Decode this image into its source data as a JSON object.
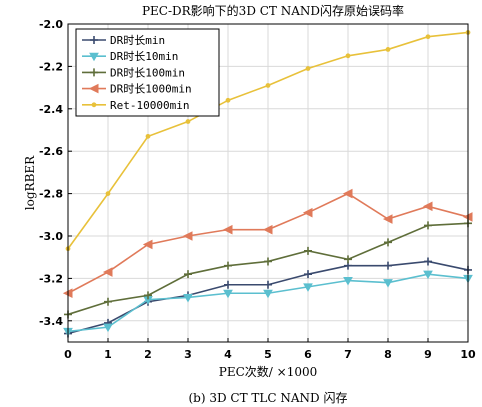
{
  "chart_data": {
    "type": "line",
    "title": "PEC-DR影响下的3D CT NAND闪存原始误码率",
    "xlabel": "PEC次数/ ×1000",
    "ylabel": "logRBER",
    "caption": "(b) 3D CT TLC NAND 闪存",
    "x": [
      0,
      1,
      2,
      3,
      4,
      5,
      6,
      7,
      8,
      9,
      10
    ],
    "xlim": [
      0,
      10
    ],
    "ylim": [
      -3.5,
      -2.0
    ],
    "x_ticks": [
      "0",
      "1",
      "2",
      "3",
      "4",
      "5",
      "6",
      "7",
      "8",
      "9",
      "10"
    ],
    "y_ticks": [
      {
        "value": -3.4,
        "label": "-3.4"
      },
      {
        "value": -3.2,
        "label": "-3.2"
      },
      {
        "value": -3.0,
        "label": "-3.0"
      },
      {
        "value": -2.8,
        "label": "-2.8"
      },
      {
        "value": -2.6,
        "label": "-2.6"
      },
      {
        "value": -2.4,
        "label": "-2.4"
      },
      {
        "value": -2.2,
        "label": "-2.2"
      },
      {
        "value": -2.0,
        "label": "-2.0"
      }
    ],
    "grid": true,
    "legend_position": "top-left",
    "series": [
      {
        "name": "DR时长min",
        "color": "#3a4a6e",
        "marker": "plus",
        "values": [
          -3.46,
          -3.41,
          -3.31,
          -3.28,
          -3.23,
          -3.23,
          -3.18,
          -3.14,
          -3.14,
          -3.12,
          -3.16
        ]
      },
      {
        "name": "DR时长10min",
        "color": "#5bbfcf",
        "marker": "triangle-down",
        "values": [
          -3.45,
          -3.43,
          -3.3,
          -3.29,
          -3.27,
          -3.27,
          -3.24,
          -3.21,
          -3.22,
          -3.18,
          -3.2
        ]
      },
      {
        "name": "DR时长100min",
        "color": "#5f6e3a",
        "marker": "plus",
        "values": [
          -3.37,
          -3.31,
          -3.28,
          -3.18,
          -3.14,
          -3.12,
          -3.07,
          -3.11,
          -3.03,
          -2.95,
          -2.94
        ]
      },
      {
        "name": "DR时长1000min",
        "color": "#e07a5a",
        "marker": "triangle-left",
        "values": [
          -3.27,
          -3.17,
          -3.04,
          -3.0,
          -2.97,
          -2.97,
          -2.89,
          -2.8,
          -2.92,
          -2.86,
          -2.91
        ]
      },
      {
        "name": "Ret-10000min",
        "color": "#e8c13a",
        "marker": "dot",
        "values": [
          -3.06,
          -2.8,
          -2.53,
          -2.46,
          -2.36,
          -2.29,
          -2.21,
          -2.15,
          -2.12,
          -2.06,
          -2.04
        ]
      }
    ]
  }
}
